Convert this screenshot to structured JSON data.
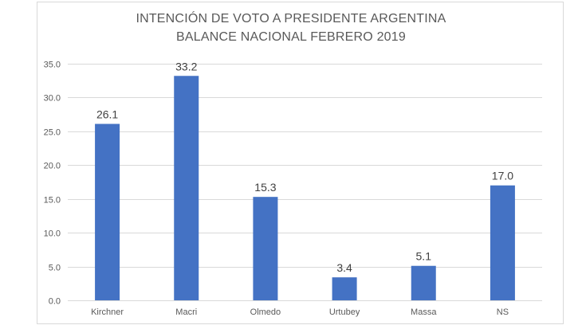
{
  "chart_data": {
    "type": "bar",
    "title": "INTENCIÓN DE VOTO A PRESIDENTE ARGENTINA",
    "subtitle": "BALANCE NACIONAL FEBRERO 2019",
    "categories": [
      "Kirchner",
      "Macri",
      "Olmedo",
      "Urtubey",
      "Massa",
      "NS"
    ],
    "values": [
      26.1,
      33.2,
      15.3,
      3.4,
      5.1,
      17.0
    ],
    "value_labels": [
      "26.1",
      "33.2",
      "15.3",
      "3.4",
      "5.1",
      "17.0"
    ],
    "ylim": [
      0,
      35
    ],
    "yticks": [
      0,
      5,
      10,
      15,
      20,
      25,
      30,
      35
    ],
    "ytick_labels": [
      "0.0",
      "5.0",
      "10.0",
      "15.0",
      "20.0",
      "25.0",
      "30.0",
      "35.0"
    ],
    "xlabel": "",
    "ylabel": "",
    "grid": true,
    "legend": "none",
    "bar_color": "#4472c4",
    "grid_color": "#d9d9d9"
  }
}
